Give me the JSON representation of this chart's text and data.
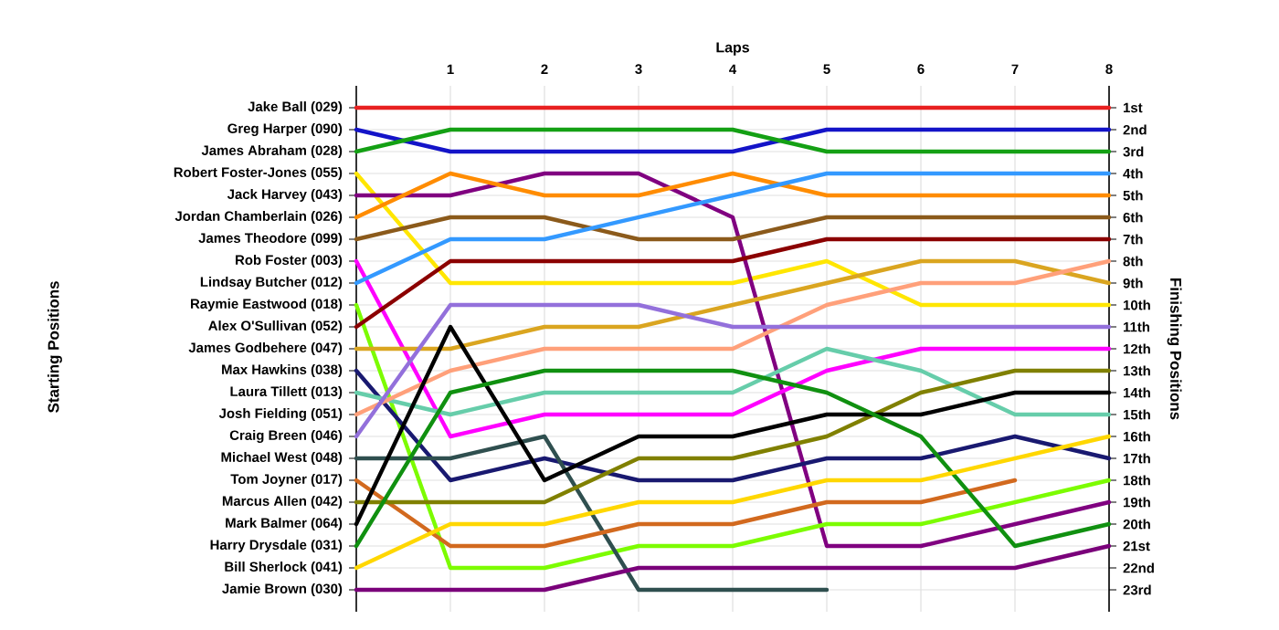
{
  "chart_data": {
    "type": "line",
    "xlabel": "Laps",
    "annotations": [
      "Starting Positions"
    ],
    "y2label": "Finishing Positions",
    "x": [
      0,
      1,
      2,
      3,
      4,
      5,
      6,
      7,
      8
    ],
    "xlim": [
      0,
      8
    ],
    "xticks": [
      1,
      2,
      3,
      4,
      5,
      6,
      7,
      8
    ],
    "y2lim": [
      24,
      0
    ],
    "grid": true,
    "line_style": "solid",
    "y_categories": [
      "Jake Ball (029)",
      "Greg Harper (090)",
      "James Abraham (028)",
      "Robert Foster-Jones (055)",
      "Jack Harvey (043)",
      "Jordan Chamberlain (026)",
      "James Theodore (099)",
      "Rob Foster (003)",
      "Lindsay Butcher (012)",
      "Raymie Eastwood (018)",
      "Alex O'Sullivan (052)",
      "James Godbehere (047)",
      "Max Hawkins (038)",
      "Laura Tillett (013)",
      "Josh Fielding (051)",
      "Craig Breen (046)",
      "Michael West (048)",
      "Tom Joyner (017)",
      "Marcus Allen (042)",
      "Mark Balmer (064)",
      "Harry Drysdale (031)",
      "Bill Sherlock (041)",
      "Jamie Brown (030)"
    ],
    "y2ticks": [
      {
        "value": 1,
        "label": "1st"
      },
      {
        "value": 2,
        "label": "2nd"
      },
      {
        "value": 3,
        "label": "3rd"
      },
      {
        "value": 4,
        "label": "4th"
      },
      {
        "value": 5,
        "label": "5th"
      },
      {
        "value": 6,
        "label": "6th"
      },
      {
        "value": 7,
        "label": "7th"
      },
      {
        "value": 8,
        "label": "8th"
      },
      {
        "value": 9,
        "label": "9th"
      },
      {
        "value": 10,
        "label": "10th"
      },
      {
        "value": 11,
        "label": "11th"
      },
      {
        "value": 12,
        "label": "12th"
      },
      {
        "value": 13,
        "label": "13th"
      },
      {
        "value": 14,
        "label": "14th"
      },
      {
        "value": 15,
        "label": "15th"
      },
      {
        "value": 16,
        "label": "16th"
      },
      {
        "value": 17,
        "label": "17th"
      },
      {
        "value": 18,
        "label": "18th"
      },
      {
        "value": 19,
        "label": "19th"
      },
      {
        "value": 20,
        "label": "20th"
      },
      {
        "value": 21,
        "label": "21st"
      },
      {
        "value": 22,
        "label": "22nd"
      },
      {
        "value": 23,
        "label": "23rd"
      }
    ],
    "series": [
      {
        "axis": "y2",
        "color": "#e82020",
        "values": [
          1,
          1,
          1,
          1,
          1,
          1,
          1,
          1,
          1
        ]
      },
      {
        "axis": "y2",
        "color": "#1414c8",
        "values": [
          2,
          3,
          3,
          3,
          3,
          2,
          2,
          2,
          2
        ]
      },
      {
        "axis": "y2",
        "color": "#14a014",
        "values": [
          3,
          2,
          2,
          2,
          2,
          3,
          3,
          3,
          3
        ]
      },
      {
        "axis": "y2",
        "color": "#ffe600",
        "values": [
          4,
          9,
          9,
          9,
          9,
          8,
          10,
          10,
          10
        ]
      },
      {
        "axis": "y2",
        "color": "#800080",
        "values": [
          5,
          5,
          4,
          4,
          6,
          21,
          21,
          20,
          19
        ]
      },
      {
        "axis": "y2",
        "color": "#ff8c00",
        "values": [
          6,
          4,
          5,
          5,
          4,
          5,
          5,
          5,
          5
        ]
      },
      {
        "axis": "y2",
        "color": "#8b5a1b",
        "values": [
          7,
          6,
          6,
          7,
          7,
          6,
          6,
          6,
          6
        ]
      },
      {
        "axis": "y2",
        "color": "#ff00ff",
        "values": [
          8,
          16,
          15,
          15,
          15,
          13,
          12,
          12,
          12
        ]
      },
      {
        "axis": "y2",
        "color": "#3399ff",
        "values": [
          9,
          7,
          7,
          6,
          5,
          4,
          4,
          4,
          4
        ]
      },
      {
        "axis": "y2",
        "color": "#7cfc00",
        "values": [
          10,
          22,
          22,
          21,
          21,
          20,
          20,
          19,
          18
        ]
      },
      {
        "axis": "y2",
        "color": "#8b0000",
        "values": [
          11,
          8,
          8,
          8,
          8,
          7,
          7,
          7,
          7
        ]
      },
      {
        "axis": "y2",
        "color": "#daa520",
        "values": [
          12,
          12,
          11,
          11,
          10,
          9,
          8,
          8,
          9
        ]
      },
      {
        "axis": "y2",
        "color": "#191970",
        "values": [
          13,
          18,
          17,
          18,
          18,
          17,
          17,
          16,
          17
        ]
      },
      {
        "axis": "y2",
        "color": "#66cdaa",
        "values": [
          14,
          15,
          14,
          14,
          14,
          12,
          13,
          15,
          15
        ]
      },
      {
        "axis": "y2",
        "color": "#ffa07a",
        "values": [
          15,
          13,
          12,
          12,
          12,
          10,
          9,
          9,
          8
        ]
      },
      {
        "axis": "y2",
        "color": "#9370db",
        "values": [
          16,
          10,
          10,
          10,
          11,
          11,
          11,
          11,
          11
        ]
      },
      {
        "axis": "y2",
        "color": "#2f4f4f",
        "values": [
          17,
          17,
          16,
          23,
          23,
          23,
          null,
          null,
          null
        ]
      },
      {
        "axis": "y2",
        "color": "#d2691e",
        "values": [
          18,
          21,
          21,
          20,
          20,
          19,
          19,
          18,
          null
        ]
      },
      {
        "axis": "y2",
        "color": "#808000",
        "values": [
          19,
          19,
          19,
          17,
          17,
          16,
          14,
          13,
          13
        ]
      },
      {
        "axis": "y2",
        "color": "#000000",
        "values": [
          20,
          11,
          18,
          16,
          16,
          15,
          15,
          14,
          14
        ]
      },
      {
        "axis": "y2",
        "color": "#109010",
        "values": [
          21,
          14,
          13,
          13,
          13,
          14,
          16,
          21,
          20
        ]
      },
      {
        "axis": "y2",
        "color": "#ffd700",
        "values": [
          22,
          20,
          20,
          19,
          19,
          18,
          18,
          17,
          16
        ]
      },
      {
        "axis": "y2",
        "color": "#7a007a",
        "values": [
          23,
          23,
          23,
          22,
          22,
          22,
          22,
          22,
          21
        ]
      }
    ]
  }
}
